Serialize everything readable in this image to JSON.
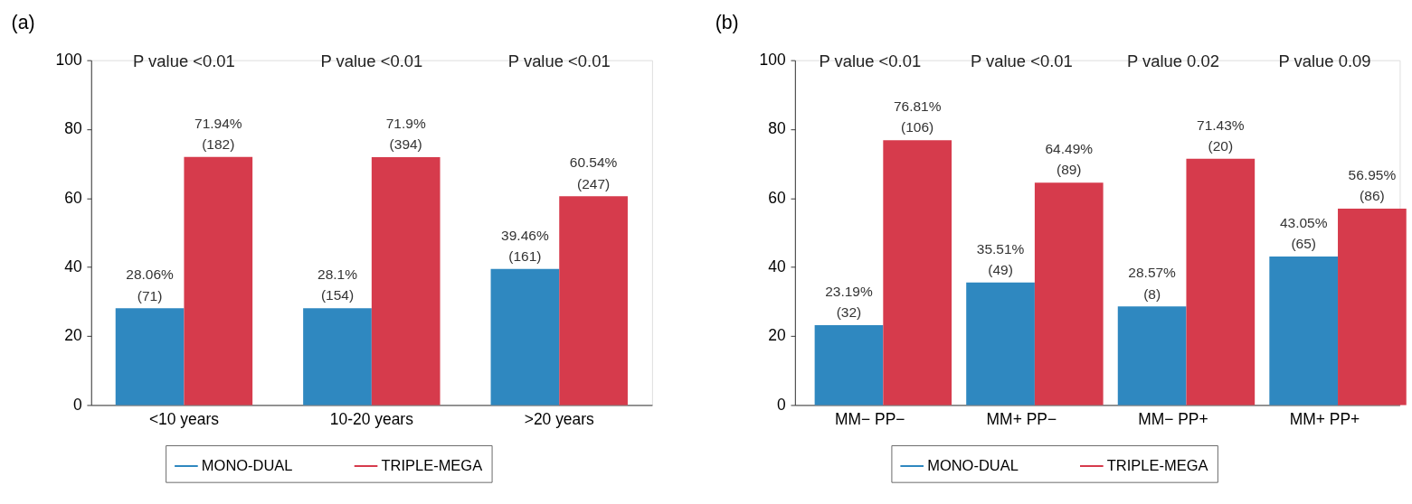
{
  "chart_data": [
    {
      "type": "bar",
      "title": "(a)",
      "categories": [
        "<10 years",
        "10-20 years",
        ">20 years"
      ],
      "series": [
        {
          "name": "MONO-DUAL",
          "color": "#2f88c0",
          "values": [
            28.06,
            28.1,
            39.46
          ],
          "value_labels": [
            "28.06%\n(71)",
            "28.1%\n(154)",
            "39.46%\n(161)"
          ]
        },
        {
          "name": "TRIPLE-MEGA",
          "color": "#d63b4c",
          "values": [
            71.94,
            71.9,
            60.54
          ],
          "value_labels": [
            "71.94%\n(182)",
            "71.9%\n(394)",
            "60.54%\n(247)"
          ]
        }
      ],
      "ylim": [
        0,
        100
      ],
      "yticks": [
        0,
        20,
        40,
        60,
        80,
        100
      ],
      "grid": false,
      "legend": "bottom",
      "annotations": [
        "P value <0.01",
        "P value <0.01",
        "P value <0.01"
      ]
    },
    {
      "type": "bar",
      "title": "(b)",
      "categories": [
        "MM− PP−",
        "MM+ PP−",
        "MM− PP+",
        "MM+ PP+"
      ],
      "series": [
        {
          "name": "MONO-DUAL",
          "color": "#2f88c0",
          "values": [
            23.19,
            35.51,
            28.57,
            43.05
          ],
          "value_labels": [
            "23.19%\n(32)",
            "35.51%\n(49)",
            "28.57%\n(8)",
            "43.05%\n(65)"
          ]
        },
        {
          "name": "TRIPLE-MEGA",
          "color": "#d63b4c",
          "values": [
            76.81,
            64.49,
            71.43,
            56.95
          ],
          "value_labels": [
            "76.81%\n(106)",
            "64.49%\n(89)",
            "71.43%\n(20)",
            "56.95%\n(86)"
          ]
        }
      ],
      "ylim": [
        0,
        100
      ],
      "yticks": [
        0,
        20,
        40,
        60,
        80,
        100
      ],
      "grid": false,
      "legend": "bottom",
      "annotations": [
        "P value <0.01",
        "P value <0.01",
        "P value 0.02",
        "P value 0.09"
      ]
    }
  ]
}
